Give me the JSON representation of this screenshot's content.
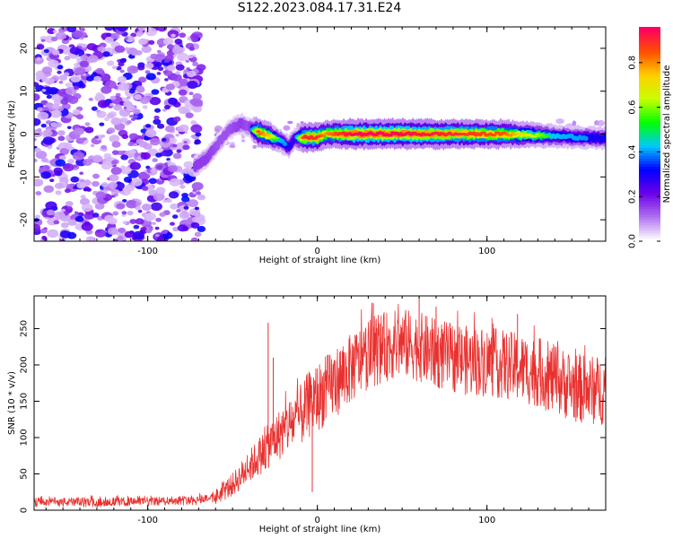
{
  "title": "S122.2023.084.17.31.E24",
  "chart_data": [
    {
      "type": "heatmap",
      "xlabel": "Height of straight line (km)",
      "ylabel": "Frequency (Hz)",
      "xlim": [
        -167,
        170
      ],
      "ylim": [
        -25,
        25
      ],
      "xticks": [
        -100,
        0,
        100
      ],
      "yticks": [
        -20,
        -10,
        0,
        10,
        20
      ],
      "colorbar": {
        "label": "Normalized spectral amplitude",
        "range": [
          0.0,
          0.96
        ],
        "ticks": [
          0.0,
          0.2,
          0.4,
          0.6,
          0.8
        ],
        "colors": [
          "#ffffff",
          "#b070f0",
          "#6a00e8",
          "#0000ff",
          "#00c8ff",
          "#00ff00",
          "#c8ff00",
          "#ffd000",
          "#ff5000",
          "#ff0060"
        ]
      },
      "noise_region_x": [
        -167,
        -68
      ],
      "ridge": [
        {
          "x": -72,
          "y": -7.5,
          "amp": 0.35
        },
        {
          "x": -65,
          "y": -5.5,
          "amp": 0.35
        },
        {
          "x": -58,
          "y": -2,
          "amp": 0.3
        },
        {
          "x": -52,
          "y": 1,
          "amp": 0.3
        },
        {
          "x": -45,
          "y": 2.5,
          "amp": 0.35
        },
        {
          "x": -40,
          "y": 1.5,
          "amp": 0.3
        },
        {
          "x": -35,
          "y": 0.5,
          "amp": 0.85
        },
        {
          "x": -28,
          "y": -0.5,
          "amp": 0.75
        },
        {
          "x": -22,
          "y": -1.5,
          "amp": 0.5
        },
        {
          "x": -17,
          "y": -3,
          "amp": 0.45
        },
        {
          "x": -13,
          "y": -1,
          "amp": 0.4
        },
        {
          "x": -8,
          "y": -0.8,
          "amp": 0.9
        },
        {
          "x": 0,
          "y": -0.8,
          "amp": 0.9
        },
        {
          "x": 5,
          "y": 0,
          "amp": 0.8
        },
        {
          "x": 20,
          "y": 0,
          "amp": 0.95
        },
        {
          "x": 50,
          "y": 0,
          "amp": 0.95
        },
        {
          "x": 80,
          "y": 0,
          "amp": 0.9
        },
        {
          "x": 110,
          "y": 0,
          "amp": 0.85
        },
        {
          "x": 140,
          "y": -0.5,
          "amp": 0.5
        },
        {
          "x": 170,
          "y": -1,
          "amp": 0.45
        }
      ]
    },
    {
      "type": "line",
      "xlabel": "Height of straight line (km)",
      "ylabel": "SNR (10 * v/v)",
      "xlim": [
        -167,
        170
      ],
      "ylim": [
        0,
        295
      ],
      "xticks": [
        -100,
        0,
        100
      ],
      "yticks": [
        0,
        50,
        100,
        150,
        200,
        250
      ],
      "series": [
        {
          "color": "#e8312f",
          "x": [
            -167,
            -140,
            -110,
            -90,
            -70,
            -60,
            -50,
            -40,
            -30,
            -20,
            -10,
            -5,
            0,
            10,
            20,
            30,
            40,
            50,
            60,
            70,
            80,
            90,
            100,
            110,
            120,
            130,
            140,
            150,
            160,
            170
          ],
          "y": [
            12,
            11,
            12,
            13,
            15,
            18,
            35,
            60,
            85,
            110,
            130,
            145,
            155,
            175,
            195,
            215,
            225,
            230,
            225,
            215,
            210,
            205,
            205,
            200,
            195,
            190,
            180,
            170,
            165,
            165
          ]
        }
      ],
      "spikes": [
        {
          "x": -29,
          "y": 258
        },
        {
          "x": -26,
          "y": 210
        },
        {
          "x": -3,
          "y": 25
        },
        {
          "x": 33,
          "y": 285
        },
        {
          "x": 60,
          "y": 295
        },
        {
          "x": 70,
          "y": 280
        },
        {
          "x": 118,
          "y": 270
        }
      ]
    }
  ]
}
